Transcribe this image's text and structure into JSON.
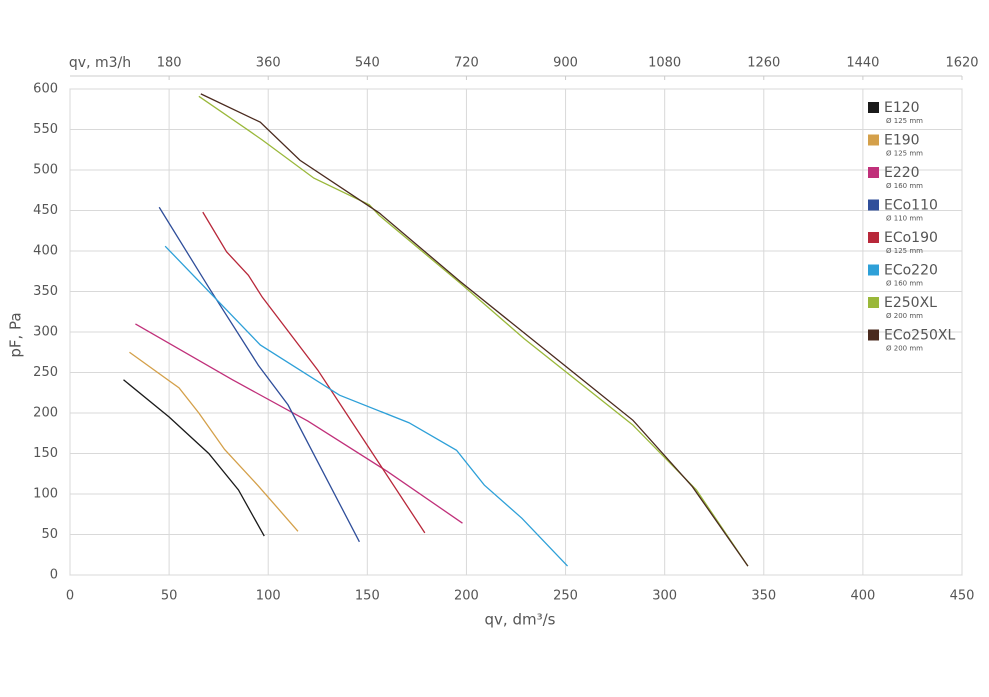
{
  "chart_data": {
    "type": "line",
    "xlabel": "qv, dm³/s",
    "ylabel": "pF, Pa",
    "x2label": "qv, m3/h",
    "xlim": [
      0,
      450
    ],
    "xticks": [
      0,
      50,
      100,
      150,
      200,
      250,
      300,
      350,
      400,
      450
    ],
    "x2lim": [
      0,
      1620
    ],
    "x2ticks": [
      180,
      360,
      540,
      720,
      900,
      1080,
      1260,
      1440,
      1620
    ],
    "ylim": [
      0,
      600
    ],
    "yticks": [
      0,
      50,
      100,
      150,
      200,
      250,
      300,
      350,
      400,
      450,
      500,
      550,
      600
    ],
    "grid": true,
    "legend": "right",
    "series": [
      {
        "name": "E120",
        "subtitle": "Ø 125 mm",
        "color": "#1a1a1a",
        "x": [
          27,
          50,
          70,
          85,
          98
        ],
        "values": [
          241,
          195,
          150,
          105,
          48
        ]
      },
      {
        "name": "E190",
        "subtitle": "Ø 125 mm",
        "color": "#d4a04a",
        "x": [
          30,
          55,
          65,
          78,
          95,
          115
        ],
        "values": [
          275,
          231,
          200,
          155,
          110,
          54
        ]
      },
      {
        "name": "E220",
        "subtitle": "Ø 160 mm",
        "color": "#c0307a",
        "x": [
          33,
          82,
          120,
          160,
          198
        ],
        "values": [
          310,
          241,
          190,
          128,
          64
        ]
      },
      {
        "name": "ECo110",
        "subtitle": "Ø 110 mm",
        "color": "#2f4e9a",
        "x": [
          45,
          70,
          95,
          110,
          146
        ],
        "values": [
          454,
          355,
          259,
          210,
          41
        ]
      },
      {
        "name": "ECo190",
        "subtitle": "Ø 125 mm",
        "color": "#b8283a",
        "x": [
          67,
          79,
          90,
          97,
          125,
          150,
          179
        ],
        "values": [
          448,
          399,
          370,
          343,
          253,
          160,
          52
        ]
      },
      {
        "name": "ECo220",
        "subtitle": "Ø 160 mm",
        "color": "#2ea0d8",
        "x": [
          48,
          96,
          136,
          171,
          195,
          209,
          228,
          251
        ],
        "values": [
          406,
          284,
          222,
          188,
          154,
          111,
          70,
          11
        ]
      },
      {
        "name": "E250XL",
        "subtitle": "Ø 200 mm",
        "color": "#9ab83a",
        "x": [
          65,
          90,
          97,
          123,
          151,
          156,
          197,
          229,
          284,
          316,
          342
        ],
        "values": [
          591,
          549,
          537,
          490,
          457,
          444,
          360,
          292,
          185,
          105,
          11
        ]
      },
      {
        "name": "ECo250XL",
        "subtitle": "Ø 200 mm",
        "color": "#4a2a1e",
        "x": [
          66,
          96,
          116,
          156,
          197,
          284,
          314,
          342
        ],
        "values": [
          594,
          559,
          512,
          447,
          362,
          191,
          109,
          11
        ]
      }
    ]
  }
}
